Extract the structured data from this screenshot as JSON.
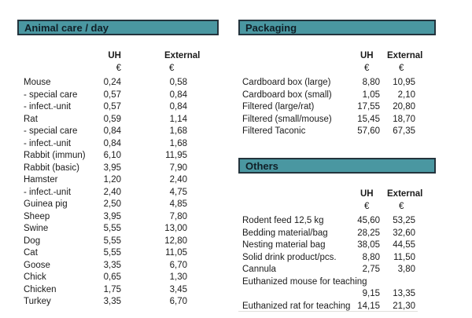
{
  "accent_color": "#4A97A1",
  "bar_border_color": "#24343d",
  "sections": {
    "animal_care": {
      "title": "Animal care / day",
      "headers": {
        "uh": "UH",
        "external": "External",
        "uh_currency": "€",
        "external_currency": "€"
      },
      "rows": [
        {
          "label": "Mouse",
          "uh": "0,24",
          "external": "0,58"
        },
        {
          "label": "- special care",
          "uh": "0,57",
          "external": "0,84"
        },
        {
          "label": "- infect.-unit",
          "uh": "0,57",
          "external": "0,84"
        },
        {
          "label": "Rat",
          "uh": "0,59",
          "external": "1,14"
        },
        {
          "label": "- special care",
          "uh": "0,84",
          "external": "1,68"
        },
        {
          "label": "- infect.-unit",
          "uh": "0,84",
          "external": "1,68"
        },
        {
          "label": "Rabbit (immun)",
          "uh": "6,10",
          "external": "11,95"
        },
        {
          "label": "Rabbit (basic)",
          "uh": "3,95",
          "external": "7,90"
        },
        {
          "label": "Hamster",
          "uh": "1,20",
          "external": "2,40"
        },
        {
          "label": "- infect.-unit",
          "uh": "2,40",
          "external": "4,75"
        },
        {
          "label": "Guinea pig",
          "uh": "2,50",
          "external": "4,85"
        },
        {
          "label": "Sheep",
          "uh": "3,95",
          "external": "7,80"
        },
        {
          "label": "Swine",
          "uh": "5,55",
          "external": "13,00"
        },
        {
          "label": "Dog",
          "uh": "5,55",
          "external": "12,80"
        },
        {
          "label": "Cat",
          "uh": "5,55",
          "external": "11,05"
        },
        {
          "label": "Goose",
          "uh": "3,35",
          "external": "6,70"
        },
        {
          "label": "Chick",
          "uh": "0,65",
          "external": "1,30"
        },
        {
          "label": "Chicken",
          "uh": "1,75",
          "external": "3,45"
        },
        {
          "label": "Turkey",
          "uh": "3,35",
          "external": "6,70"
        }
      ]
    },
    "packaging": {
      "title": "Packaging",
      "headers": {
        "uh": "UH",
        "external": "External",
        "uh_currency": "€",
        "external_currency": "€"
      },
      "rows": [
        {
          "label": "Cardboard box (large)",
          "uh": "8,80",
          "external": "10,95"
        },
        {
          "label": "Cardboard box (small)",
          "uh": "1,05",
          "external": "2,10"
        },
        {
          "label": "Filtered (large/rat)",
          "uh": "17,55",
          "external": "20,80"
        },
        {
          "label": "Filtered (small/mouse)",
          "uh": "15,45",
          "external": "18,70"
        },
        {
          "label": "Filtered Taconic",
          "uh": "57,60",
          "external": "67,35"
        }
      ]
    },
    "others": {
      "title": "Others",
      "headers": {
        "uh": "UH",
        "external": "External",
        "uh_currency": "€",
        "external_currency": "€"
      },
      "rows": [
        {
          "label": "Rodent feed 12,5 kg",
          "uh": "45,60",
          "external": "53,25"
        },
        {
          "label": "Bedding material/bag",
          "uh": "28,25",
          "external": "32,60"
        },
        {
          "label": "Nesting material bag",
          "uh": "38,05",
          "external": "44,55"
        },
        {
          "label": "Solid drink product/pcs.",
          "uh": "8,80",
          "external": "11,50"
        },
        {
          "label": "Cannula",
          "uh": "2,75",
          "external": "3,80"
        },
        {
          "label": "Euthanized mouse for teaching",
          "uh": "",
          "external": ""
        },
        {
          "label": "",
          "uh": "9,15",
          "external": "13,35"
        },
        {
          "label": "Euthanized rat for teaching",
          "uh": "14,15",
          "external": "21,30"
        }
      ]
    }
  }
}
